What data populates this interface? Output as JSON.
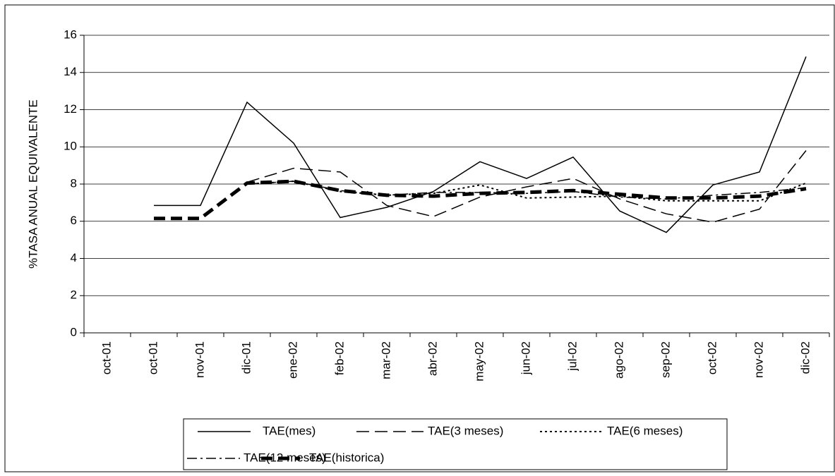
{
  "chart_data": {
    "type": "line",
    "y_label": "%TASA ANUAL EQUIVALENTE",
    "categories": [
      "oct-01",
      "oct-01",
      "nov-01",
      "dic-01",
      "ene-02",
      "feb-02",
      "mar-02",
      "abr-02",
      "may-02",
      "jun-02",
      "jul-02",
      "ago-02",
      "sep-02",
      "oct-02",
      "nov-02",
      "dic-02"
    ],
    "series": [
      {
        "name": "TAE(mes)",
        "color": "#000000",
        "values": [
          null,
          6.85,
          6.85,
          12.4,
          10.2,
          6.2,
          6.75,
          7.6,
          9.2,
          8.3,
          9.45,
          6.55,
          5.4,
          7.95,
          8.65,
          14.85
        ]
      },
      {
        "name": "TAE(3 meses)",
        "color": "#000000",
        "values": [
          null,
          null,
          null,
          8.1,
          8.85,
          8.65,
          6.85,
          6.25,
          7.3,
          7.85,
          8.3,
          7.2,
          6.4,
          5.95,
          6.65,
          9.8
        ]
      },
      {
        "name": "TAE(6 meses)",
        "color": "#000000",
        "values": [
          null,
          null,
          null,
          8.0,
          8.15,
          7.6,
          7.4,
          7.5,
          7.95,
          7.25,
          7.3,
          7.35,
          7.1,
          7.1,
          7.1,
          8.05
        ]
      },
      {
        "name": "TAE(12 meses)",
        "color": "#000000",
        "values": [
          null,
          null,
          null,
          8.0,
          8.15,
          7.65,
          7.4,
          7.55,
          7.55,
          7.5,
          7.6,
          7.3,
          7.2,
          7.4,
          7.55,
          7.8
        ]
      },
      {
        "name": "TAE(historica)",
        "color": "#000000",
        "values": [
          null,
          6.15,
          6.15,
          8.05,
          8.15,
          7.65,
          7.4,
          7.35,
          7.5,
          7.55,
          7.65,
          7.45,
          7.25,
          7.25,
          7.35,
          7.75
        ]
      }
    ],
    "ylim": [
      0,
      16
    ],
    "yticks": [
      0,
      2,
      4,
      6,
      8,
      10,
      12,
      14,
      16
    ],
    "grid": true
  }
}
